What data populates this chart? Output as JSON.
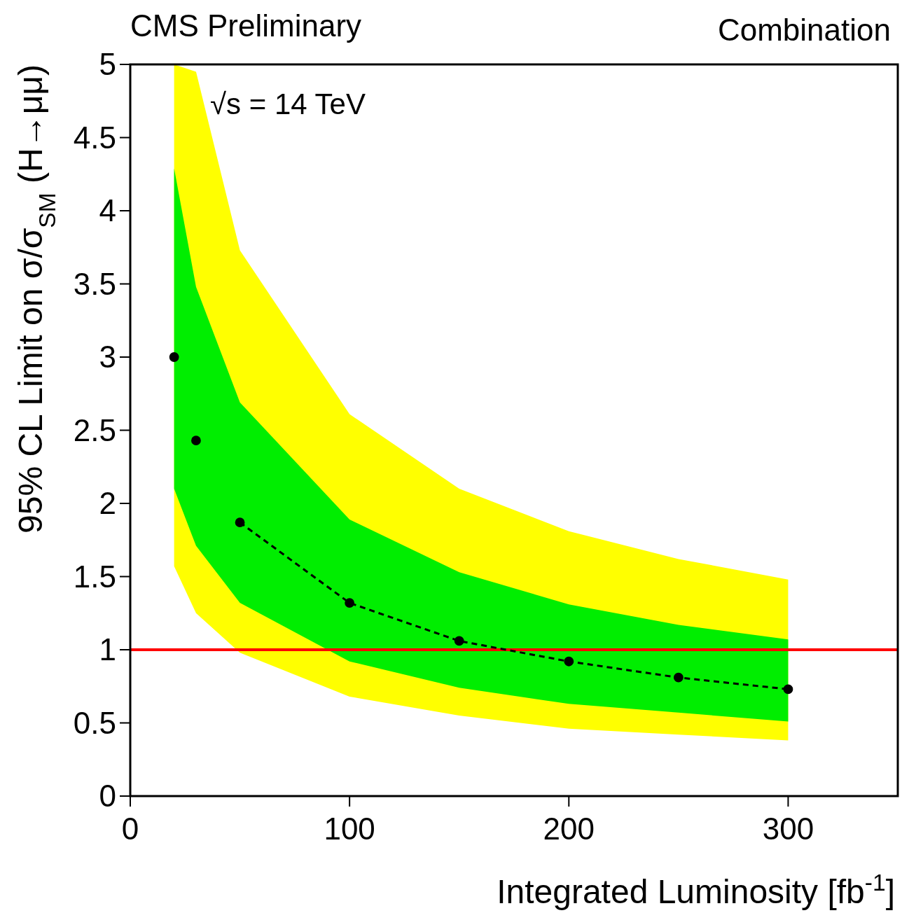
{
  "chart_data": {
    "type": "line",
    "xlabel": "Integrated Luminosity [fb$^{-1}$]",
    "ylabel": "95% CL Limit on σ/σ$_{SM}$ (H→μμ)",
    "annotations": [
      "CMS Preliminary",
      "Combination",
      "√s = 14 TeV"
    ],
    "xlim": [
      0,
      350
    ],
    "xticks": [
      0,
      100,
      200,
      300
    ],
    "ylim": [
      0,
      5
    ],
    "yticks": [
      0,
      0.5,
      1,
      1.5,
      2,
      2.5,
      3,
      3.5,
      4,
      4.5,
      5
    ],
    "grid": false,
    "ref_lines": [
      {
        "axis": "y",
        "value": 1,
        "color": "#ff0000"
      }
    ],
    "series": [
      {
        "type": "scatter",
        "color": "#000000",
        "marker": "circle",
        "x": [
          20,
          30,
          50,
          100,
          150,
          200,
          250,
          300
        ],
        "values": [
          3.0,
          2.43,
          1.87,
          1.32,
          1.06,
          0.92,
          0.81,
          0.73
        ],
        "lower": [
          1.57,
          1.25,
          0.98,
          0.68,
          0.55,
          0.46,
          0.42,
          0.38
        ],
        "upper": [
          5,
          4.95,
          3.73,
          2.61,
          2.1,
          1.81,
          1.62,
          1.48
        ]
      },
      {
        "color": "#000000",
        "line_style": "dashed",
        "marker": "none",
        "x": [
          20,
          30,
          50,
          100,
          150,
          200,
          250,
          300
        ],
        "values": [
          null,
          null,
          1.87,
          1.32,
          1.06,
          0.92,
          0.81,
          0.73
        ],
        "lower": [
          2.1,
          1.71,
          1.32,
          0.92,
          0.74,
          0.63,
          0.57,
          0.51
        ],
        "upper": [
          4.29,
          3.48,
          2.69,
          1.89,
          1.53,
          1.31,
          1.17,
          1.07
        ]
      }
    ]
  }
}
